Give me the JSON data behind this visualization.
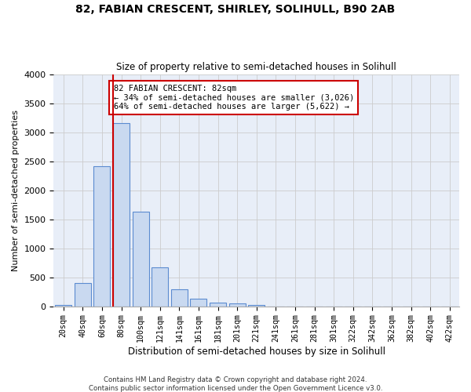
{
  "title1": "82, FABIAN CRESCENT, SHIRLEY, SOLIHULL, B90 2AB",
  "title2": "Size of property relative to semi-detached houses in Solihull",
  "xlabel": "Distribution of semi-detached houses by size in Solihull",
  "ylabel": "Number of semi-detached properties",
  "footer1": "Contains HM Land Registry data © Crown copyright and database right 2024.",
  "footer2": "Contains public sector information licensed under the Open Government Licence v3.0.",
  "categories": [
    "20sqm",
    "40sqm",
    "60sqm",
    "80sqm",
    "100sqm",
    "121sqm",
    "141sqm",
    "161sqm",
    "181sqm",
    "201sqm",
    "221sqm",
    "241sqm",
    "261sqm",
    "281sqm",
    "301sqm",
    "322sqm",
    "342sqm",
    "362sqm",
    "382sqm",
    "402sqm",
    "422sqm"
  ],
  "values": [
    30,
    400,
    2420,
    3150,
    1630,
    670,
    290,
    130,
    60,
    50,
    30,
    0,
    0,
    0,
    0,
    0,
    0,
    0,
    0,
    0,
    0
  ],
  "bar_color": "#c9d9f0",
  "bar_edge_color": "#5b8bd0",
  "highlight_index": 3,
  "highlight_line_color": "#cc0000",
  "annotation_text": "82 FABIAN CRESCENT: 82sqm\n← 34% of semi-detached houses are smaller (3,026)\n64% of semi-detached houses are larger (5,622) →",
  "annotation_box_color": "#ffffff",
  "annotation_box_edge": "#cc0000",
  "ylim": [
    0,
    4000
  ],
  "yticks": [
    0,
    500,
    1000,
    1500,
    2000,
    2500,
    3000,
    3500,
    4000
  ],
  "grid_color": "#cccccc",
  "bg_color": "#e8eef8"
}
